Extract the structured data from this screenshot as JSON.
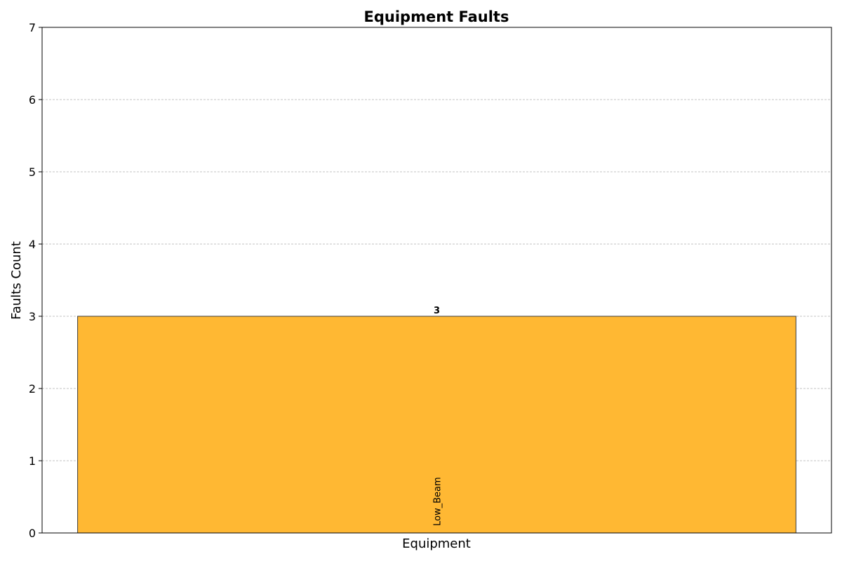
{
  "chart_data": {
    "type": "bar",
    "title": "Equipment Faults",
    "xlabel": "Equipment",
    "ylabel": "Faults Count",
    "categories": [
      "Low_Beam"
    ],
    "values": [
      3
    ],
    "value_labels": [
      "3"
    ],
    "ylim": [
      0,
      7
    ],
    "yticks": [
      0,
      1,
      2,
      3,
      4,
      5,
      6,
      7
    ],
    "ytick_labels": [
      "0",
      "1",
      "2",
      "3",
      "4",
      "5",
      "6",
      "7"
    ],
    "grid": {
      "axis": "y",
      "style": "dashed",
      "color": "#b0b0b0"
    },
    "bar_color": "#ffb833",
    "bar_edge_color": "#3b3b3b",
    "category_label_position": "inside bar, rotated vertical"
  }
}
